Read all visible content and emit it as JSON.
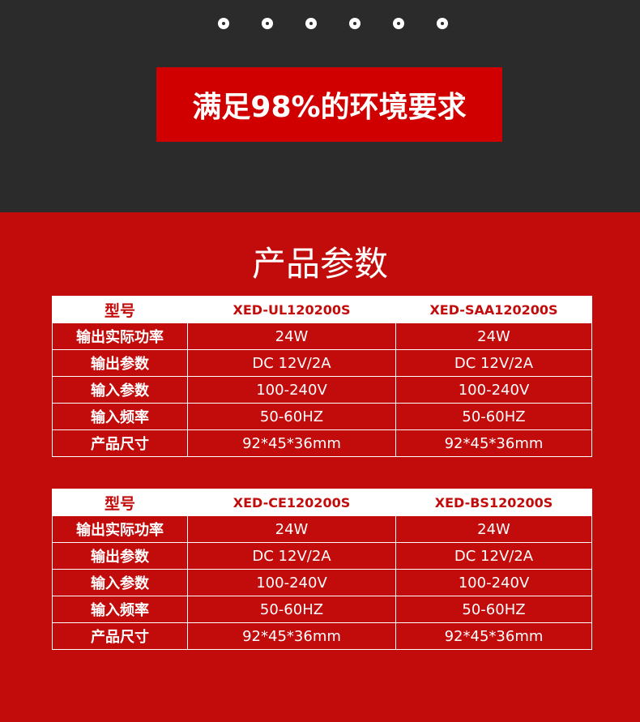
{
  "banner": {
    "text": "满足98%的环境要求"
  },
  "section_title": "产品参数",
  "tables": [
    {
      "headers": [
        "型号",
        "XED-UL120200S",
        "XED-SAA120200S"
      ],
      "rows": [
        [
          "输出实际功率",
          "24W",
          "24W"
        ],
        [
          "输出参数",
          "DC 12V/2A",
          "DC 12V/2A"
        ],
        [
          "输入参数",
          "100-240V",
          "100-240V"
        ],
        [
          "输入频率",
          "50-60HZ",
          "50-60HZ"
        ],
        [
          "产品尺寸",
          "92*45*36mm",
          "92*45*36mm"
        ]
      ]
    },
    {
      "headers": [
        "型号",
        "XED-CE120200S",
        "XED-BS120200S"
      ],
      "rows": [
        [
          "输出实际功率",
          "24W",
          "24W"
        ],
        [
          "输出参数",
          "DC 12V/2A",
          "DC 12V/2A"
        ],
        [
          "输入参数",
          "100-240V",
          "100-240V"
        ],
        [
          "输入频率",
          "50-60HZ",
          "50-60HZ"
        ],
        [
          "产品尺寸",
          "92*45*36mm",
          "92*45*36mm"
        ]
      ]
    }
  ]
}
